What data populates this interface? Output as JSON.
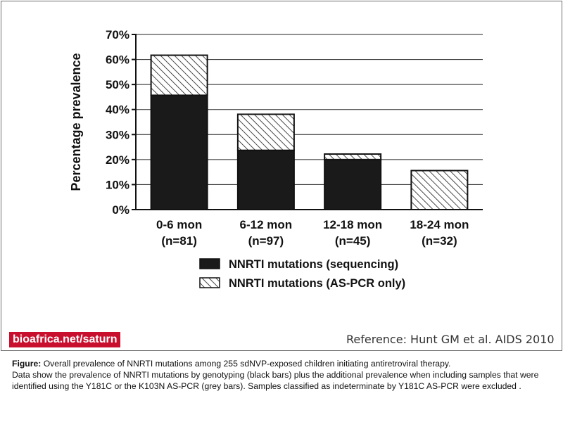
{
  "chart_data": {
    "type": "bar",
    "stacked": true,
    "ylabel": "Percentage prevalence",
    "ylim": [
      0,
      70
    ],
    "ytick_values": [
      0,
      10,
      20,
      30,
      40,
      50,
      60,
      70
    ],
    "ytick_labels": [
      "0%",
      "10%",
      "20%",
      "30%",
      "40%",
      "50%",
      "60%",
      "70%"
    ],
    "grid": "horizontal",
    "categories": [
      "0-6 mon",
      "6-12 mon",
      "12-18 mon",
      "18-24 mon"
    ],
    "category_sublabels": [
      "(n=81)",
      "(n=97)",
      "(n=45)",
      "(n=32)"
    ],
    "series": [
      {
        "name": "NNRTI mutations (sequencing)",
        "values": [
          45.7,
          23.7,
          20.0,
          0
        ],
        "fill": "solid",
        "color": "#1a1a1a"
      },
      {
        "name": "NNRTI mutations (AS-PCR only)",
        "values": [
          16.0,
          14.4,
          2.2,
          15.6
        ],
        "fill": "hatched",
        "color": "#1a1a1a"
      }
    ],
    "legend_position": "bottom-center"
  },
  "brand_label": "bioafrica.net/saturn",
  "reference": "Reference: Hunt GM et al. AIDS 2010",
  "caption": {
    "label": "Figure:",
    "line1": " Overall prevalence of NNRTI mutations among 255 sdNVP-exposed children initiating antiretroviral therapy.",
    "line2": "Data show the prevalence of NNRTI mutations by genotyping (black bars) plus the additional prevalence when including samples that were",
    "line3": "identified using the Y181C or the K103N AS-PCR (grey bars). Samples classified as indeterminate by Y181C AS-PCR were excluded ."
  },
  "colors": {
    "accent": "#c8102e",
    "bar": "#1a1a1a",
    "grid": "#222222",
    "frame": "#6e6e6e"
  }
}
